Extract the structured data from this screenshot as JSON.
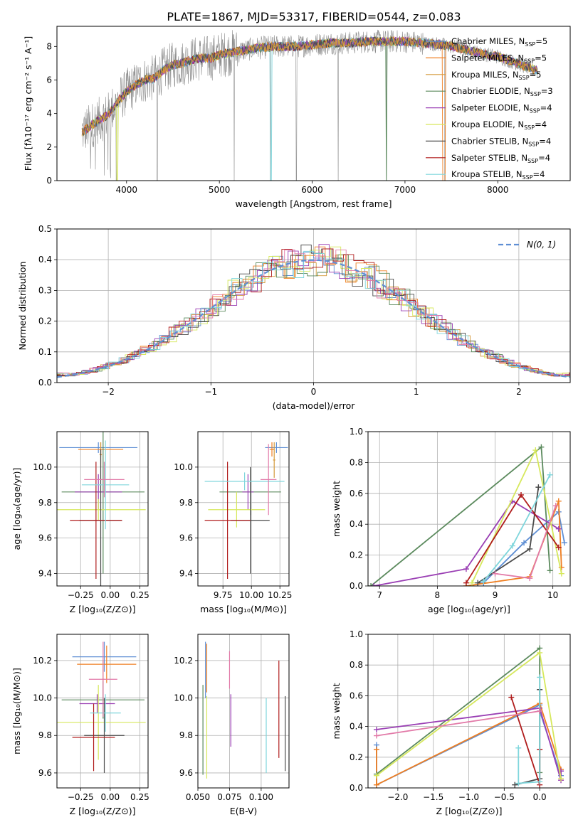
{
  "figure_title": "PLATE=1867, MJD=53317, FIBERID=0544, z=0.083",
  "palette": [
    "#5f8fd4",
    "#ef7f22",
    "#d49a3c",
    "#5b8a5d",
    "#9a3fb4",
    "#d6e85c",
    "#4a4a4a",
    "#b01c1c",
    "#7fd6dc",
    "#e27aa8",
    "#2e7d32",
    "#8e8e8e"
  ],
  "chart_data": [
    {
      "id": "spectrum",
      "type": "line",
      "title": "",
      "xlabel": "wavelength [Angstrom, rest frame]",
      "ylabel": "Flux [fλ10⁻¹⁷ erg cm⁻² s⁻¹ A⁻¹]",
      "xlim": [
        3250,
        8780
      ],
      "ylim": [
        0,
        9.2
      ],
      "xticks": [
        4000,
        5000,
        6000,
        7000,
        8000
      ],
      "yticks": [
        0,
        2,
        4,
        6,
        8
      ],
      "grid": false,
      "legend_placement": "right",
      "legend": [
        {
          "base": "Chabrier MILES, N",
          "sub": "SSP",
          "tail": "=5",
          "color": "#5f8fd4"
        },
        {
          "base": "Salpeter MILES, N",
          "sub": "SSP",
          "tail": "=5",
          "color": "#ef7f22"
        },
        {
          "base": "Kroupa MILES, N",
          "sub": "SSP",
          "tail": "=5",
          "color": "#d49a3c"
        },
        {
          "base": "Chabrier ELODIE, N",
          "sub": "SSP",
          "tail": "=3",
          "color": "#5b8a5d"
        },
        {
          "base": "Salpeter ELODIE, N",
          "sub": "SSP",
          "tail": "=4",
          "color": "#9a3fb4"
        },
        {
          "base": "Kroupa ELODIE, N",
          "sub": "SSP",
          "tail": "=4",
          "color": "#d6e85c"
        },
        {
          "base": "Chabrier STELIB, N",
          "sub": "SSP",
          "tail": "=4",
          "color": "#4a4a4a"
        },
        {
          "base": "Salpeter STELIB, N",
          "sub": "SSP",
          "tail": "=4",
          "color": "#b01c1c"
        },
        {
          "base": "Kroupa STELIB, N",
          "sub": "SSP",
          "tail": "=4",
          "color": "#7fd6dc"
        }
      ],
      "continuum_x": [
        3520,
        3600,
        3700,
        3800,
        3900,
        4000,
        4100,
        4200,
        4300,
        4400,
        4500,
        4600,
        4700,
        4800,
        4900,
        5000,
        5200,
        5400,
        5600,
        5800,
        6000,
        6200,
        6400,
        6600,
        6800,
        7000,
        7200,
        7400,
        7600,
        7800,
        8000,
        8200,
        8400
      ],
      "continuum_y": [
        2.9,
        3.2,
        3.6,
        3.9,
        4.7,
        5.3,
        5.7,
        6.0,
        6.1,
        6.6,
        6.9,
        7.0,
        7.2,
        7.3,
        7.3,
        7.5,
        7.7,
        7.9,
        8.0,
        8.0,
        8.1,
        8.2,
        8.2,
        8.3,
        8.3,
        8.3,
        8.2,
        8.1,
        7.9,
        7.6,
        7.4,
        7.0,
        6.6
      ]
    },
    {
      "id": "residuals",
      "type": "histogram",
      "xlabel": "(data-model)/error",
      "ylabel": "Normed distribution",
      "xlim": [
        -2.5,
        2.5
      ],
      "ylim": [
        0,
        0.5
      ],
      "xticks": [
        -2,
        -1,
        0,
        1,
        2
      ],
      "yticks": [
        0.0,
        0.1,
        0.2,
        0.3,
        0.4,
        0.5
      ],
      "grid": true,
      "legend_placement": "top-right",
      "legend": [
        {
          "label": "N(0, 1)",
          "color": "#5f8fd4",
          "dashed": true
        }
      ],
      "curve": {
        "mean": 0,
        "sigma": 1
      }
    },
    {
      "id": "age-vs-Z",
      "type": "errorbar",
      "xlabel": "Z [log₁₀(Z/Z⊙)]",
      "ylabel": "age  [log₁₀(age/yr)]",
      "xlim": [
        -0.45,
        0.32
      ],
      "ylim": [
        9.33,
        10.2
      ],
      "xticks": [
        -0.25,
        0.0,
        0.25
      ],
      "xticklabels": [
        "−0.25",
        "0.00",
        "0.25"
      ],
      "yticks": [
        9.4,
        9.6,
        9.8,
        10.0
      ],
      "grid": true,
      "points": [
        {
          "x": -0.1,
          "y": 10.11,
          "xerr": 0.33,
          "yerr": 0.03,
          "color": "#5f8fd4"
        },
        {
          "x": -0.08,
          "y": 10.1,
          "xerr": 0.19,
          "yerr": 0.04,
          "color": "#ef7f22"
        },
        {
          "x": -0.08,
          "y": 10.07,
          "xerr": 0.01,
          "yerr": 0.07,
          "color": "#d49a3c"
        },
        {
          "x": -0.06,
          "y": 9.86,
          "xerr": 0.35,
          "yerr": 0.46,
          "color": "#5b8a5d"
        },
        {
          "x": -0.1,
          "y": 9.86,
          "xerr": 0.2,
          "yerr": 0.1,
          "color": "#9a3fb4"
        },
        {
          "x": -0.1,
          "y": 9.76,
          "xerr": 0.4,
          "yerr": 0.06,
          "color": "#d6e85c"
        },
        {
          "x": -0.08,
          "y": 9.7,
          "xerr": 0.18,
          "yerr": 0.4,
          "color": "#4a4a4a"
        },
        {
          "x": -0.12,
          "y": 9.7,
          "xerr": 0.22,
          "yerr": 0.33,
          "color": "#b01c1c"
        },
        {
          "x": -0.04,
          "y": 9.9,
          "xerr": 0.2,
          "yerr": 0.25,
          "color": "#7fd6dc"
        },
        {
          "x": -0.05,
          "y": 9.93,
          "xerr": 0.17,
          "yerr": 0.1,
          "color": "#e27aa8"
        }
      ]
    },
    {
      "id": "age-vs-mass",
      "type": "errorbar",
      "xlabel": "mass [log₁₀(M/M⊙)]",
      "ylabel": "",
      "xlim": [
        9.53,
        10.33
      ],
      "ylim": [
        9.33,
        10.2
      ],
      "xticks": [
        9.75,
        10.0,
        10.25
      ],
      "xticklabels": [
        "9.75",
        "10.00",
        "10.25"
      ],
      "yticks": [
        9.4,
        9.6,
        9.8,
        10.0
      ],
      "grid": true,
      "points": [
        {
          "x": 10.22,
          "y": 10.11,
          "xerr": 0.1,
          "yerr": 0.03,
          "color": "#5f8fd4"
        },
        {
          "x": 10.18,
          "y": 10.1,
          "xerr": 0.02,
          "yerr": 0.04,
          "color": "#ef7f22"
        },
        {
          "x": 10.2,
          "y": 10.04,
          "xerr": 0.01,
          "yerr": 0.1,
          "color": "#d49a3c"
        },
        {
          "x": 9.99,
          "y": 9.86,
          "xerr": 0.27,
          "yerr": 0.13,
          "color": "#5b8a5d"
        },
        {
          "x": 9.97,
          "y": 9.86,
          "xerr": 0.05,
          "yerr": 0.1,
          "color": "#9a3fb4"
        },
        {
          "x": 9.87,
          "y": 9.76,
          "xerr": 0.25,
          "yerr": 0.1,
          "color": "#d6e85c"
        },
        {
          "x": 9.99,
          "y": 9.7,
          "xerr": 0.17,
          "yerr": 0.3,
          "color": "#4a4a4a"
        },
        {
          "x": 9.79,
          "y": 9.7,
          "xerr": 0.2,
          "yerr": 0.33,
          "color": "#b01c1c"
        },
        {
          "x": 9.94,
          "y": 9.92,
          "xerr": 0.35,
          "yerr": 0.05,
          "color": "#7fd6dc"
        },
        {
          "x": 10.15,
          "y": 9.93,
          "xerr": 0.07,
          "yerr": 0.2,
          "color": "#e27aa8"
        }
      ]
    },
    {
      "id": "massweight-vs-age",
      "type": "line",
      "xlabel": "age  [log₁₀(age/yr)]",
      "ylabel": "mass weight",
      "xlim": [
        6.8,
        10.3
      ],
      "ylim": [
        0,
        1.0
      ],
      "xticks": [
        7,
        8,
        9,
        10
      ],
      "yticks": [
        0.0,
        0.2,
        0.4,
        0.6,
        0.8,
        1.0
      ],
      "grid": true,
      "series": [
        {
          "color": "#5f8fd4",
          "x": [
            8.8,
            9.5,
            10.1,
            10.2
          ],
          "y": [
            0.02,
            0.28,
            0.48,
            0.28
          ]
        },
        {
          "color": "#ef7f22",
          "x": [
            8.5,
            9.6,
            10.1,
            10.15
          ],
          "y": [
            0.0,
            0.06,
            0.55,
            0.12
          ]
        },
        {
          "color": "#5b8a5d",
          "x": [
            6.85,
            9.8,
            9.95
          ],
          "y": [
            0.0,
            0.9,
            0.1
          ]
        },
        {
          "color": "#9a3fb4",
          "x": [
            6.9,
            8.5,
            9.3,
            10.1
          ],
          "y": [
            0.0,
            0.11,
            0.55,
            0.37
          ]
        },
        {
          "color": "#d6e85c",
          "x": [
            8.6,
            9.7,
            10.15
          ],
          "y": [
            0.02,
            0.88,
            0.08
          ]
        },
        {
          "color": "#4a4a4a",
          "x": [
            8.7,
            9.6,
            9.75
          ],
          "y": [
            0.02,
            0.24,
            0.64
          ]
        },
        {
          "color": "#b01c1c",
          "x": [
            8.5,
            9.45,
            10.1
          ],
          "y": [
            0.02,
            0.59,
            0.25
          ]
        },
        {
          "color": "#7fd6dc",
          "x": [
            8.8,
            9.3,
            9.95
          ],
          "y": [
            0.03,
            0.26,
            0.72
          ]
        },
        {
          "color": "#e27aa8",
          "x": [
            9.0,
            9.6,
            10.05
          ],
          "y": [
            0.08,
            0.05,
            0.52
          ]
        }
      ]
    },
    {
      "id": "mass-vs-Z",
      "type": "errorbar",
      "xlabel": "Z [log₁₀(Z/Z⊙)]",
      "ylabel": "mass [log₁₀(M/M⊙)]",
      "xlim": [
        -0.45,
        0.32
      ],
      "ylim": [
        9.52,
        10.34
      ],
      "xticks": [
        -0.25,
        0.0,
        0.25
      ],
      "xticklabels": [
        "−0.25",
        "0.00",
        "0.25"
      ],
      "yticks": [
        9.6,
        9.8,
        10.0,
        10.2
      ],
      "grid": true,
      "points": [
        {
          "x": -0.05,
          "y": 10.22,
          "xerr": 0.27,
          "yerr": 0.08,
          "color": "#5f8fd4"
        },
        {
          "x": -0.03,
          "y": 10.18,
          "xerr": 0.25,
          "yerr": 0.1,
          "color": "#ef7f22"
        },
        {
          "x": -0.06,
          "y": 10.1,
          "xerr": 0.01,
          "yerr": 0.1,
          "color": "#d49a3c"
        },
        {
          "x": -0.06,
          "y": 9.99,
          "xerr": 0.35,
          "yerr": 0.1,
          "color": "#5b8a5d"
        },
        {
          "x": -0.11,
          "y": 9.97,
          "xerr": 0.15,
          "yerr": 0.05,
          "color": "#9a3fb4"
        },
        {
          "x": -0.1,
          "y": 9.87,
          "xerr": 0.4,
          "yerr": 0.2,
          "color": "#d6e85c"
        },
        {
          "x": -0.05,
          "y": 9.8,
          "xerr": 0.17,
          "yerr": 0.2,
          "color": "#4a4a4a"
        },
        {
          "x": -0.14,
          "y": 9.79,
          "xerr": 0.18,
          "yerr": 0.18,
          "color": "#b01c1c"
        },
        {
          "x": -0.04,
          "y": 9.92,
          "xerr": 0.13,
          "yerr": 0.1,
          "color": "#7fd6dc"
        },
        {
          "x": -0.06,
          "y": 10.1,
          "xerr": 0.12,
          "yerr": 0.2,
          "color": "#e27aa8"
        }
      ]
    },
    {
      "id": "mass-vs-EBV",
      "type": "errorbar",
      "xlabel": "E(B-V)",
      "ylabel": "",
      "xlim": [
        0.05,
        0.122
      ],
      "ylim": [
        9.52,
        10.34
      ],
      "xticks": [
        0.05,
        0.075,
        0.1
      ],
      "xticklabels": [
        "0.050",
        "0.075",
        "0.100"
      ],
      "yticks": [
        9.6,
        9.8,
        10.0,
        10.2
      ],
      "grid": true,
      "points": [
        {
          "x": 0.056,
          "y": 10.15,
          "xerr": 0,
          "yerr": 0.15,
          "color": "#5f8fd4"
        },
        {
          "x": 0.057,
          "y": 10.16,
          "xerr": 0,
          "yerr": 0.13,
          "color": "#ef7f22"
        },
        {
          "x": 0.054,
          "y": 9.83,
          "xerr": 0,
          "yerr": 0.24,
          "color": "#5b8a5d"
        },
        {
          "x": 0.076,
          "y": 9.88,
          "xerr": 0,
          "yerr": 0.14,
          "color": "#9a3fb4"
        },
        {
          "x": 0.057,
          "y": 9.79,
          "xerr": 0,
          "yerr": 0.22,
          "color": "#d6e85c"
        },
        {
          "x": 0.119,
          "y": 9.81,
          "xerr": 0,
          "yerr": 0.2,
          "color": "#4a4a4a"
        },
        {
          "x": 0.114,
          "y": 9.94,
          "xerr": 0,
          "yerr": 0.26,
          "color": "#b01c1c"
        },
        {
          "x": 0.104,
          "y": 9.8,
          "xerr": 0,
          "yerr": 0.2,
          "color": "#7fd6dc"
        },
        {
          "x": 0.075,
          "y": 10.15,
          "xerr": 0,
          "yerr": 0.1,
          "color": "#e27aa8"
        }
      ]
    },
    {
      "id": "massweight-vs-Z",
      "type": "line",
      "xlabel": "Z [log₁₀(Z/Z⊙)]",
      "ylabel": "mass weight",
      "xlim": [
        -2.42,
        0.43
      ],
      "ylim": [
        0,
        1.0
      ],
      "xticks": [
        -2.0,
        -1.5,
        -1.0,
        -0.5,
        0.0
      ],
      "xticklabels": [
        "−2.0",
        "−1.5",
        "−1.0",
        "−0.5",
        "0.0"
      ],
      "yticks": [
        0.0,
        0.2,
        0.4,
        0.6,
        0.8,
        1.0
      ],
      "grid": true,
      "series": [
        {
          "color": "#5f8fd4",
          "x": [
            -2.3,
            -2.3,
            0.0,
            0.0,
            0.3
          ],
          "y": [
            0.28,
            0.02,
            0.54,
            0.5,
            0.08
          ]
        },
        {
          "color": "#ef7f22",
          "x": [
            -2.3,
            -2.3,
            0.0,
            0.3
          ],
          "y": [
            0.25,
            0.02,
            0.55,
            0.12
          ]
        },
        {
          "color": "#5b8a5d",
          "x": [
            -2.3,
            0.0,
            0.0
          ],
          "y": [
            0.09,
            0.91,
            0.1
          ]
        },
        {
          "color": "#9a3fb4",
          "x": [
            -2.3,
            0.0,
            0.3,
            0.3
          ],
          "y": [
            0.38,
            0.52,
            0.05,
            0.11
          ]
        },
        {
          "color": "#d6e85c",
          "x": [
            -2.3,
            0.0,
            0.3
          ],
          "y": [
            0.08,
            0.88,
            0.06
          ]
        },
        {
          "color": "#4a4a4a",
          "x": [
            -0.35,
            0.0,
            0.0
          ],
          "y": [
            0.02,
            0.06,
            0.64
          ]
        },
        {
          "color": "#b01c1c",
          "x": [
            -0.4,
            0.0,
            0.0
          ],
          "y": [
            0.59,
            0.02,
            0.25
          ]
        },
        {
          "color": "#7fd6dc",
          "x": [
            -0.3,
            -0.3,
            0.0,
            0.0
          ],
          "y": [
            0.26,
            0.03,
            0.04,
            0.72
          ]
        },
        {
          "color": "#e27aa8",
          "x": [
            -2.3,
            0.0
          ],
          "y": [
            0.34,
            0.5
          ]
        }
      ]
    }
  ]
}
